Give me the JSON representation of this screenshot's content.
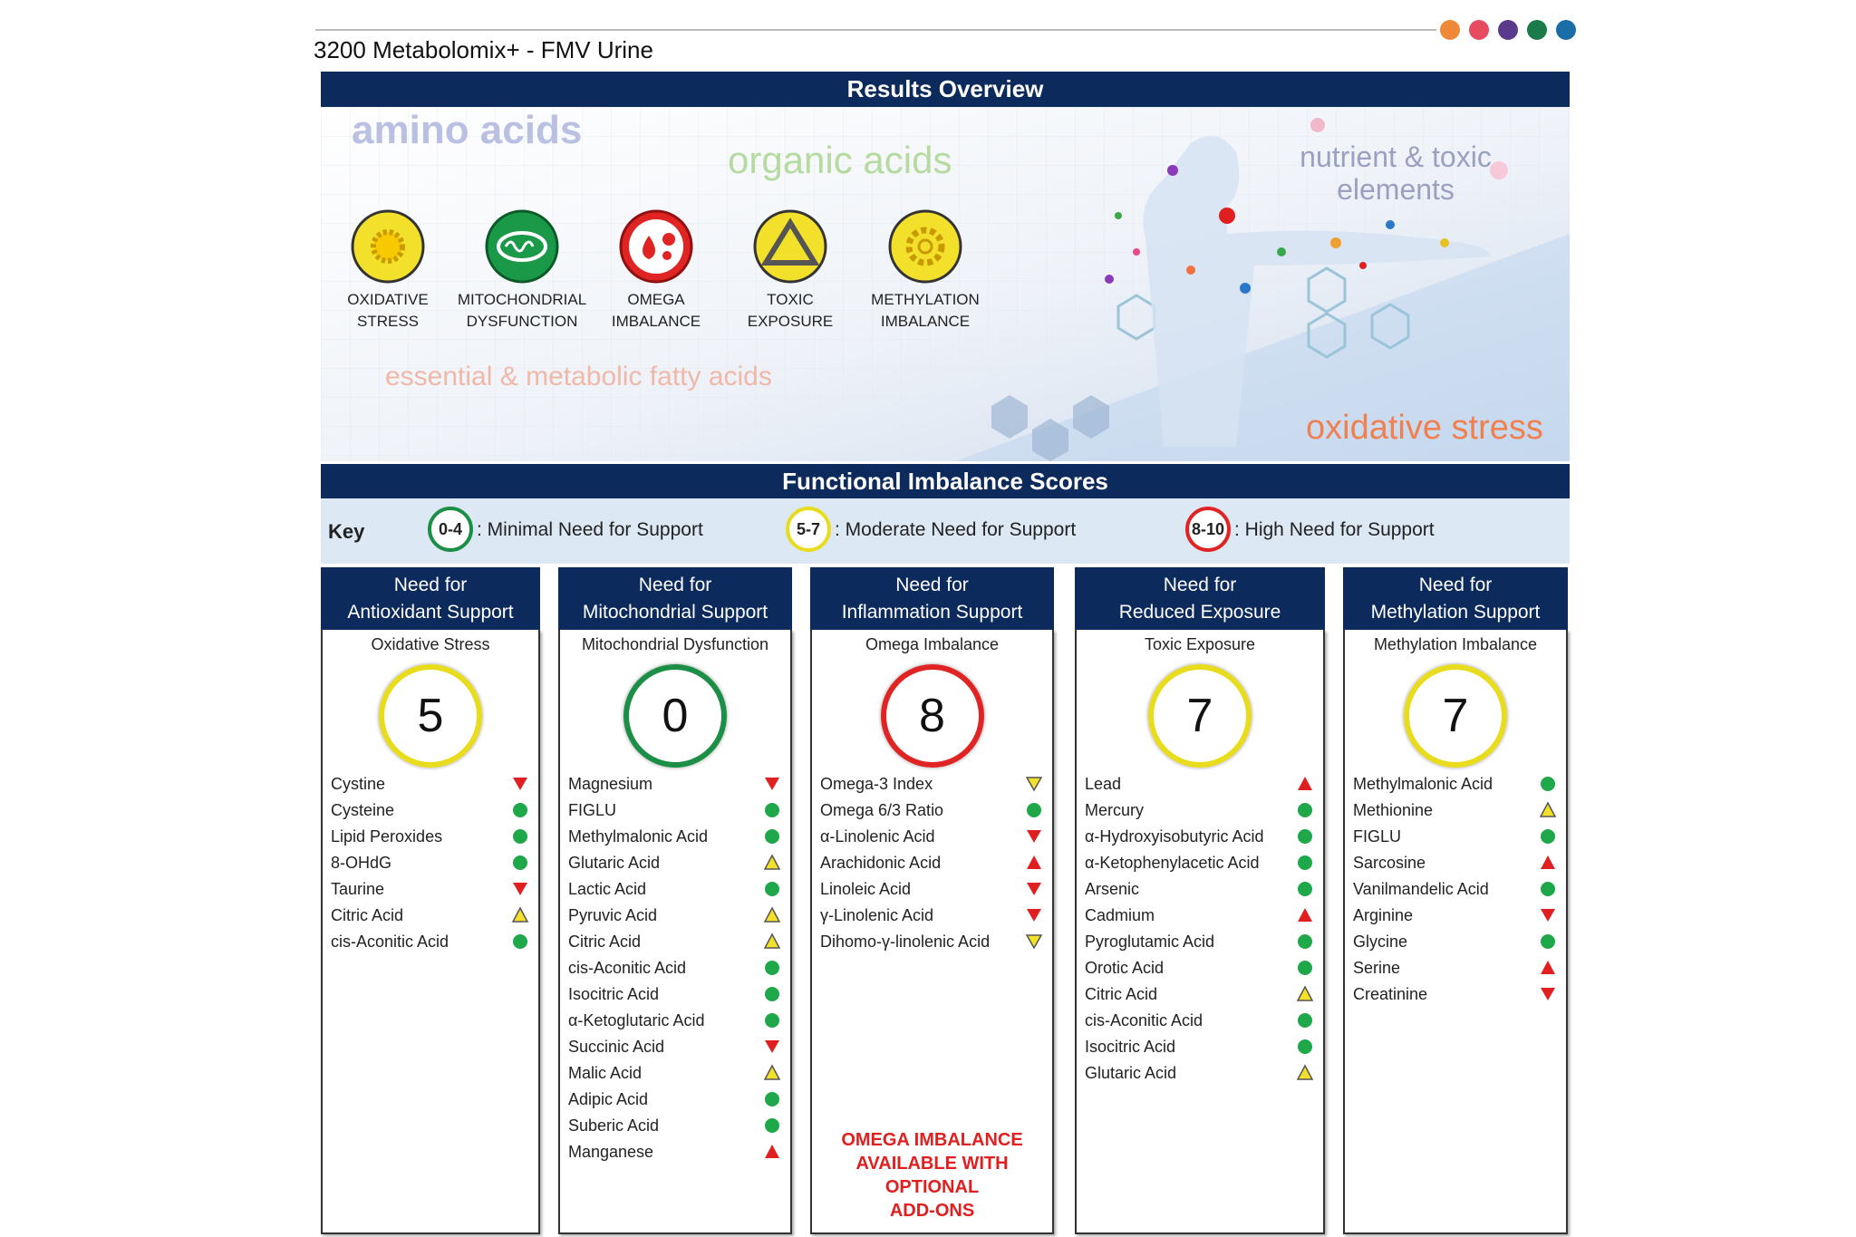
{
  "header": {
    "title": "3200 Metabolomix+ - FMV Urine"
  },
  "overview": {
    "title": "Results Overview",
    "areas": {
      "amino": "amino acids",
      "organic": "organic acids",
      "nutrient": [
        "nutrient & toxic",
        "elements"
      ],
      "fatty": "essential & metabolic fatty acids",
      "oxidative": "oxidative stress"
    },
    "icons": [
      {
        "label": [
          "OXIDATIVE",
          "STRESS"
        ]
      },
      {
        "label": [
          "MITOCHONDRIAL",
          "DYSFUNCTION"
        ]
      },
      {
        "label": [
          "OMEGA",
          "IMBALANCE"
        ]
      },
      {
        "label": [
          "TOXIC",
          "EXPOSURE"
        ]
      },
      {
        "label": [
          "METHYLATION",
          "IMBALANCE"
        ]
      }
    ]
  },
  "scores": {
    "title": "Functional Imbalance Scores",
    "key": {
      "label": "Key",
      "items": [
        {
          "range": "0-4",
          "text": ": Minimal Need for Support",
          "color": "#1a8f45"
        },
        {
          "range": "5-7",
          "text": ": Moderate Need for Support",
          "color": "#e8dc1c"
        },
        {
          "range": "8-10",
          "text": ": High Need for Support",
          "color": "#e02424"
        }
      ]
    },
    "columns": [
      {
        "header": [
          "Need for",
          "Antioxidant Support"
        ],
        "subtitle": "Oxidative Stress",
        "score": 5,
        "color": "#e8dc1c",
        "items": [
          {
            "name": "Cystine",
            "marker": "red-down"
          },
          {
            "name": "Cysteine",
            "marker": "green-dot"
          },
          {
            "name": "Lipid Peroxides",
            "marker": "green-dot"
          },
          {
            "name": "8-OHdG",
            "marker": "green-dot"
          },
          {
            "name": "Taurine",
            "marker": "red-down"
          },
          {
            "name": "Citric Acid",
            "marker": "yellow-up"
          },
          {
            "name": "cis-Aconitic Acid",
            "marker": "green-dot"
          }
        ]
      },
      {
        "header": [
          "Need for",
          "Mitochondrial Support"
        ],
        "subtitle": "Mitochondrial Dysfunction",
        "score": 0,
        "color": "#1a8f45",
        "items": [
          {
            "name": "Magnesium",
            "marker": "red-down"
          },
          {
            "name": "FIGLU",
            "marker": "green-dot"
          },
          {
            "name": "Methylmalonic Acid",
            "marker": "green-dot"
          },
          {
            "name": "Glutaric Acid",
            "marker": "yellow-up"
          },
          {
            "name": "Lactic Acid",
            "marker": "green-dot"
          },
          {
            "name": "Pyruvic Acid",
            "marker": "yellow-up"
          },
          {
            "name": "Citric Acid",
            "marker": "yellow-up"
          },
          {
            "name": "cis-Aconitic Acid",
            "marker": "green-dot"
          },
          {
            "name": "Isocitric Acid",
            "marker": "green-dot"
          },
          {
            "name": "α-Ketoglutaric Acid",
            "marker": "green-dot"
          },
          {
            "name": "Succinic Acid",
            "marker": "red-down"
          },
          {
            "name": "Malic Acid",
            "marker": "yellow-up"
          },
          {
            "name": "Adipic Acid",
            "marker": "green-dot"
          },
          {
            "name": "Suberic Acid",
            "marker": "green-dot"
          },
          {
            "name": "Manganese",
            "marker": "red-up"
          }
        ]
      },
      {
        "header": [
          "Need for",
          "Inflammation Support"
        ],
        "subtitle": "Omega Imbalance",
        "score": 8,
        "color": "#e02424",
        "items": [
          {
            "name": "Omega-3 Index",
            "marker": "yellow-down"
          },
          {
            "name": "Omega 6/3 Ratio",
            "marker": "green-dot"
          },
          {
            "name": "α-Linolenic Acid",
            "marker": "red-down"
          },
          {
            "name": "Arachidonic Acid",
            "marker": "red-up"
          },
          {
            "name": "Linoleic Acid",
            "marker": "red-down"
          },
          {
            "name": "γ-Linolenic Acid",
            "marker": "red-down"
          },
          {
            "name": "Dihomo-γ-linolenic Acid",
            "marker": "yellow-down"
          }
        ],
        "note": [
          "OMEGA IMBALANCE",
          "AVAILABLE WITH",
          "OPTIONAL",
          "ADD-ONS"
        ]
      },
      {
        "header": [
          "Need for",
          "Reduced Exposure"
        ],
        "subtitle": "Toxic Exposure",
        "score": 7,
        "color": "#e8dc1c",
        "items": [
          {
            "name": "Lead",
            "marker": "red-up"
          },
          {
            "name": "Mercury",
            "marker": "green-dot"
          },
          {
            "name": "α-Hydroxyisobutyric Acid",
            "marker": "green-dot"
          },
          {
            "name": "α-Ketophenylacetic Acid",
            "marker": "green-dot"
          },
          {
            "name": "Arsenic",
            "marker": "green-dot"
          },
          {
            "name": "Cadmium",
            "marker": "red-up"
          },
          {
            "name": "Pyroglutamic Acid",
            "marker": "green-dot"
          },
          {
            "name": "Orotic Acid",
            "marker": "green-dot"
          },
          {
            "name": "Citric Acid",
            "marker": "yellow-up"
          },
          {
            "name": "cis-Aconitic Acid",
            "marker": "green-dot"
          },
          {
            "name": "Isocitric Acid",
            "marker": "green-dot"
          },
          {
            "name": "Glutaric Acid",
            "marker": "yellow-up"
          }
        ]
      },
      {
        "header": [
          "Need for",
          "Methylation Support"
        ],
        "subtitle": "Methylation Imbalance",
        "score": 7,
        "color": "#e8dc1c",
        "items": [
          {
            "name": "Methylmalonic Acid",
            "marker": "green-dot"
          },
          {
            "name": "Methionine",
            "marker": "yellow-up"
          },
          {
            "name": "FIGLU",
            "marker": "green-dot"
          },
          {
            "name": "Sarcosine",
            "marker": "red-up"
          },
          {
            "name": "Vanilmandelic Acid",
            "marker": "green-dot"
          },
          {
            "name": "Arginine",
            "marker": "red-down"
          },
          {
            "name": "Glycine",
            "marker": "green-dot"
          },
          {
            "name": "Serine",
            "marker": "red-up"
          },
          {
            "name": "Creatinine",
            "marker": "red-down"
          }
        ]
      }
    ]
  }
}
